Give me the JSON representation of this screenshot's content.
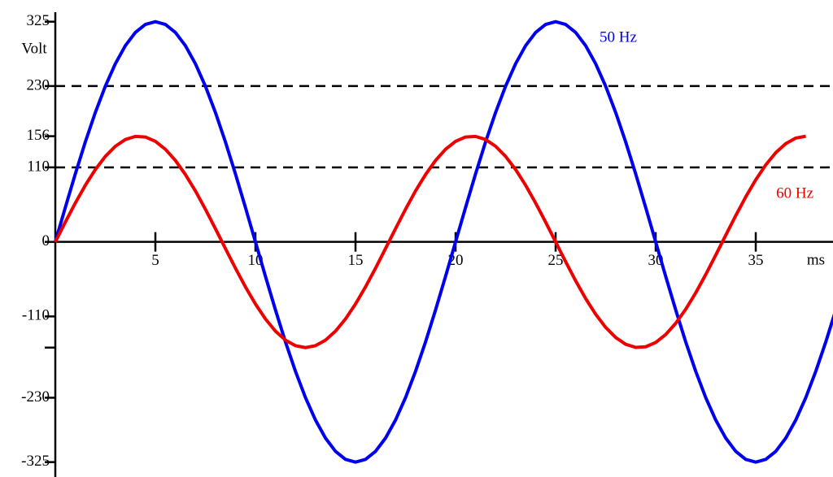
{
  "chart_data": {
    "type": "line",
    "y_label": "Volt",
    "x_label": "ms",
    "x": [
      0,
      0.5,
      1,
      1.5,
      2,
      2.5,
      3,
      3.5,
      4,
      4.5,
      5,
      5.5,
      6,
      6.5,
      7,
      7.5,
      8,
      8.5,
      9,
      9.5,
      10,
      10.5,
      11,
      11.5,
      12,
      12.5,
      13,
      13.5,
      14,
      14.5,
      15,
      15.5,
      16,
      16.5,
      17,
      17.5,
      18,
      18.5,
      19,
      19.5,
      20,
      20.5,
      21,
      21.5,
      22,
      22.5,
      23,
      23.5,
      24,
      24.5,
      25,
      25.5,
      26,
      26.5,
      27,
      27.5,
      28,
      28.5,
      29,
      29.5,
      30,
      30.5,
      31,
      31.5,
      32,
      32.5,
      33,
      33.5,
      34,
      34.5,
      35,
      35.5,
      36,
      36.5,
      37,
      37.5,
      38,
      38.5,
      39
    ],
    "series": [
      {
        "name": "50 Hz",
        "color": "#0000ee",
        "values": [
          0,
          50.8,
          100.4,
          147.6,
          191,
          229.8,
          262.9,
          289.6,
          309.1,
          321,
          325,
          321,
          309.1,
          289.6,
          262.9,
          229.8,
          191,
          147.6,
          100.4,
          50.8,
          0,
          -50.8,
          -100.4,
          -147.6,
          -191,
          -229.8,
          -262.9,
          -289.6,
          -309.1,
          -321,
          -325,
          -321,
          -309.1,
          -289.6,
          -262.9,
          -229.8,
          -191,
          -147.6,
          -100.4,
          -50.8,
          0,
          50.8,
          100.4,
          147.6,
          191,
          229.8,
          262.9,
          289.6,
          309.1,
          321,
          325,
          321,
          309.1,
          289.6,
          262.9,
          229.8,
          191,
          147.6,
          100.4,
          50.8,
          0,
          -50.8,
          -100.4,
          -147.6,
          -191,
          -229.8,
          -262.9,
          -289.6,
          -309.1,
          -321,
          -325,
          -321,
          -309.1,
          -289.6,
          -262.9,
          -229.8,
          -191,
          -147.6,
          -100.4
        ]
      },
      {
        "name": "60 Hz",
        "color": "#ee0000",
        "values": [
          0,
          29.2,
          57.4,
          83.6,
          106.8,
          126.2,
          141.1,
          151.1,
          155.7,
          154.8,
          148.4,
          136.7,
          120.2,
          99.4,
          75.2,
          48.2,
          19.5,
          -9.8,
          -38.8,
          -66.4,
          -91.7,
          -113.7,
          -131.7,
          -145,
          -153.2,
          -156,
          -153.2,
          -145,
          -131.7,
          -113.7,
          -91.7,
          -66.4,
          -38.8,
          -9.8,
          19.5,
          48.2,
          75.2,
          99.4,
          120.2,
          136.7,
          148.4,
          154.8,
          155.7,
          151.1,
          141.1,
          126.2,
          106.8,
          83.6,
          57.4,
          29.2,
          0,
          -29.2,
          -57.4,
          -83.6,
          -106.8,
          -126.2,
          -141.1,
          -151.1,
          -155.7,
          -154.8,
          -148.4,
          -136.7,
          -120.2,
          -99.4,
          -75.2,
          -48.2,
          -19.5,
          9.8,
          38.8,
          66.4,
          91.7,
          113.7,
          131.7,
          145,
          153.2,
          156,
          null,
          null,
          null
        ]
      }
    ],
    "xlim": [
      0,
      38.86
    ],
    "ylim": [
      -347,
      357
    ],
    "xticks": [
      5,
      10,
      15,
      20,
      25,
      30,
      35
    ],
    "yticks": [
      325,
      230,
      156,
      110,
      0,
      -110,
      {
        "value": -156,
        "label": null
      },
      -230,
      -325
    ],
    "reference_lines": [
      230,
      110
    ]
  }
}
